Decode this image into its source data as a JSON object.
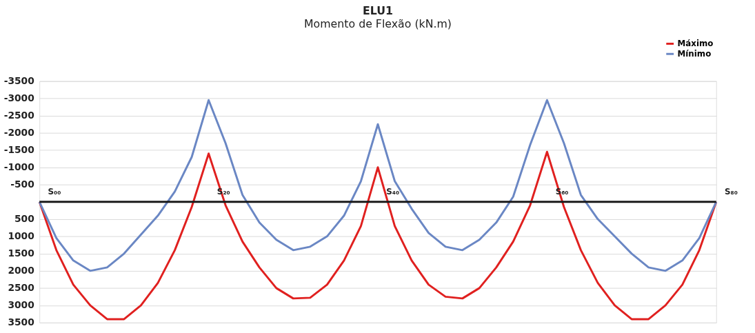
{
  "chart_data": {
    "type": "line",
    "title": "ELU1",
    "subtitle": "Momento de Flexão (kN.m)",
    "categories": [
      null,
      null,
      null,
      null,
      null,
      null,
      null,
      null,
      null,
      null,
      null,
      null,
      null,
      null,
      null,
      null,
      null,
      null,
      null,
      null,
      null,
      null,
      null,
      null,
      null,
      null,
      null,
      null,
      null,
      null,
      null,
      null,
      null,
      null,
      null,
      null,
      null,
      null,
      null,
      null,
      null
    ],
    "series": [
      {
        "name": "Máximo",
        "color": "#e0201f",
        "values": [
          0,
          1400,
          2400,
          3000,
          3400,
          3400,
          3000,
          2350,
          1400,
          150,
          -1400,
          100,
          1150,
          1900,
          2500,
          2800,
          2780,
          2400,
          1700,
          700,
          -1000,
          700,
          1700,
          2400,
          2750,
          2800,
          2500,
          1900,
          1150,
          100,
          -1450,
          150,
          1400,
          2350,
          3000,
          3400,
          3400,
          3000,
          2400,
          1400,
          0
        ]
      },
      {
        "name": "Mínimo",
        "color": "#6a87c4",
        "values": [
          0,
          1050,
          1700,
          2000,
          1900,
          1500,
          950,
          400,
          -300,
          -1300,
          -2950,
          -1700,
          -200,
          600,
          1100,
          1400,
          1300,
          1000,
          400,
          -600,
          -2250,
          -600,
          200,
          900,
          1300,
          1400,
          1100,
          600,
          -150,
          -1650,
          -2950,
          -1700,
          -200,
          500,
          1000,
          1500,
          1900,
          2000,
          1700,
          1050,
          0
        ]
      }
    ],
    "ylim": [
      3500,
      -3500
    ],
    "yticks": [
      -3500,
      -3000,
      -2500,
      -2000,
      -1500,
      -1000,
      -500,
      500,
      1000,
      1500,
      2000,
      2500,
      3000,
      3500
    ],
    "tick_labels": "y",
    "grid": "y",
    "legend": "top right",
    "marker": "none",
    "line_style": "solid",
    "ref_lines": [
      {
        "axis": "y",
        "value": 0,
        "color": "#1a1a1a"
      }
    ],
    "annotations": [
      "S₀₀",
      "S₂₀",
      "S₄₀",
      "S₆₀",
      "S₈₀"
    ]
  }
}
